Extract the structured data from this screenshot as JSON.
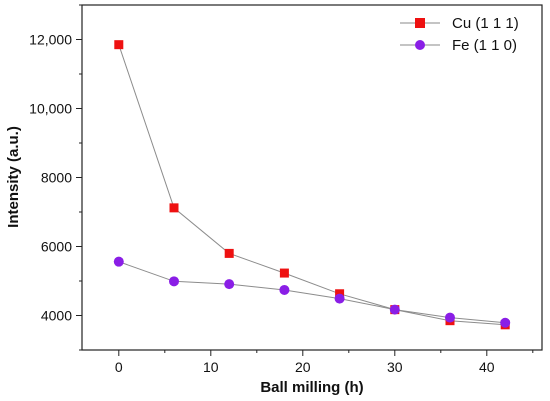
{
  "chart_data": {
    "type": "line",
    "title": "",
    "xlabel": "Ball milling (h)",
    "ylabel": "Intensity (a.u.)",
    "xlim": [
      -4,
      46
    ],
    "ylim": [
      3000,
      13000
    ],
    "x_ticks": [
      0,
      10,
      20,
      30,
      40
    ],
    "y_ticks": [
      4000,
      6000,
      8000,
      10000,
      12000
    ],
    "x_tick_labels": [
      "0",
      "10",
      "20",
      "30",
      "40"
    ],
    "y_tick_labels": [
      "4000",
      "6000",
      "8000",
      "10,000",
      "12,000"
    ],
    "legend_position": "top-right",
    "grid": false,
    "series": [
      {
        "name": "Cu (1 1 1)",
        "marker": "square",
        "color": "#ee1111",
        "x": [
          0,
          6,
          12,
          18,
          24,
          30,
          36,
          42
        ],
        "y": [
          11850,
          7120,
          5800,
          5230,
          4630,
          4170,
          3850,
          3730
        ]
      },
      {
        "name": "Fe (1 1 0)",
        "marker": "circle",
        "color": "#8a1ee6",
        "x": [
          0,
          6,
          12,
          18,
          24,
          30,
          36,
          42
        ],
        "y": [
          5560,
          4990,
          4910,
          4740,
          4490,
          4170,
          3940,
          3790
        ]
      }
    ]
  }
}
